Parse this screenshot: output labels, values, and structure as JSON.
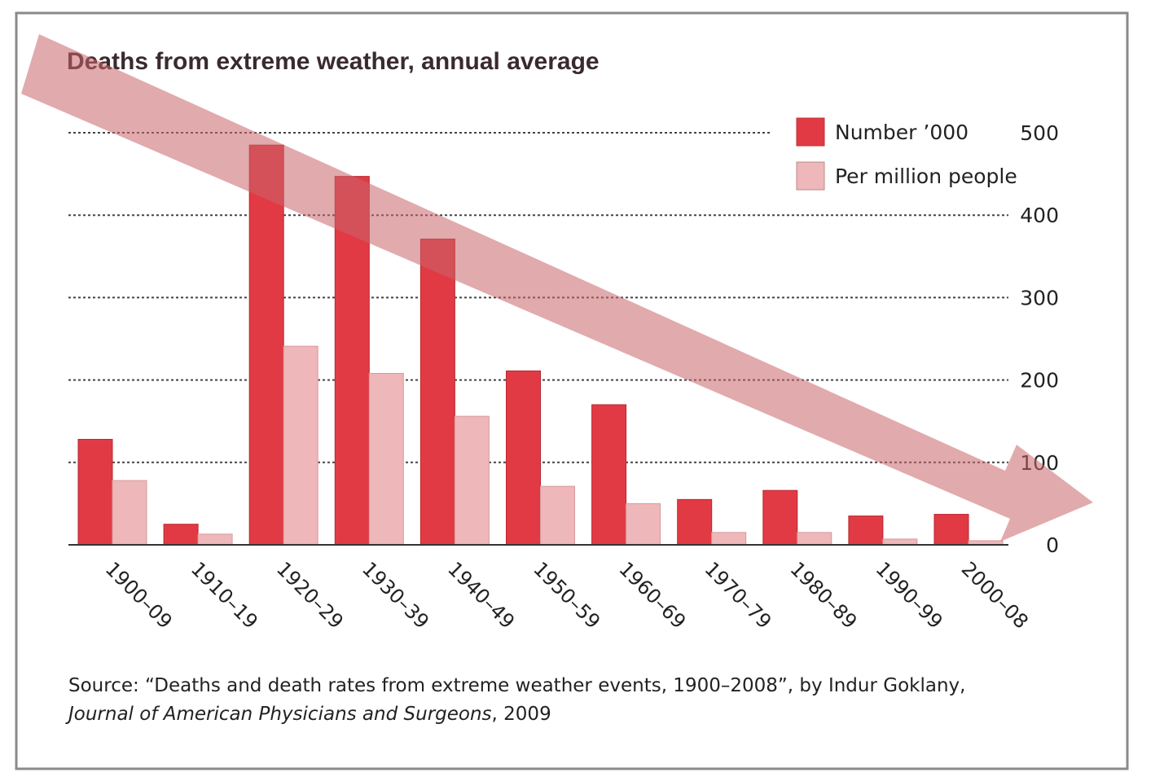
{
  "colors": {
    "number_series": "#e23a45",
    "per_million_series": "#eeb7b9",
    "arrow": "#c9646a",
    "grid": "#444444",
    "frame": "#8a8a8a"
  },
  "chart_data": {
    "type": "bar",
    "title": "Deaths from extreme weather, annual average",
    "categories": [
      "1900–09",
      "1910–19",
      "1920–29",
      "1930–39",
      "1940–49",
      "1950–59",
      "1960–69",
      "1970–79",
      "1980–89",
      "1990–99",
      "2000–08"
    ],
    "series": [
      {
        "name": "Number ’000",
        "color": "#e23a45",
        "values": [
          128,
          25,
          485,
          447,
          371,
          211,
          170,
          55,
          66,
          35,
          37
        ]
      },
      {
        "name": "Per million people",
        "color": "#eeb7b9",
        "values": [
          78,
          13,
          241,
          208,
          156,
          71,
          50,
          15,
          15,
          7,
          5
        ]
      }
    ],
    "yticks": [
      0,
      100,
      200,
      300,
      400,
      500
    ],
    "ylim": [
      0,
      500
    ],
    "grid": true,
    "grid_style": "dotted",
    "y_axis_side": "right",
    "legend_position": "top-right",
    "annotation": "downward trend arrow"
  },
  "source": {
    "line1": "Source: “Deaths and death rates from extreme weather events, 1900–2008”, by Indur Goklany,",
    "journal": "Journal of American Physicians and Surgeons",
    "year_suffix": ", 2009"
  }
}
